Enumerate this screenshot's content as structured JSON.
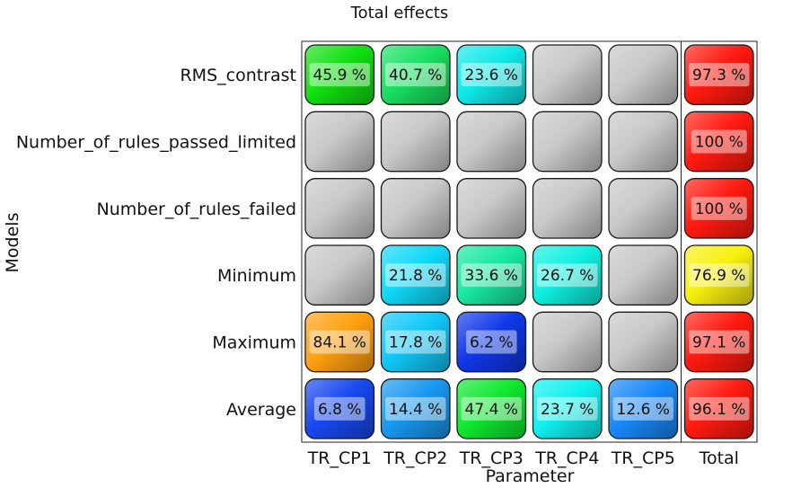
{
  "chart_data": {
    "type": "heatmap",
    "title": "Total effects",
    "xlabel": "Parameter",
    "ylabel": "Models",
    "columns": [
      "TR_CP1",
      "TR_CP2",
      "TR_CP3",
      "TR_CP4",
      "TR_CP5",
      "Total"
    ],
    "rows": [
      "RMS_contrast",
      "Number_of_rules_passed_limited",
      "Number_of_rules_failed",
      "Minimum",
      "Maximum",
      "Average"
    ],
    "values": [
      [
        45.9,
        40.7,
        23.6,
        null,
        null,
        97.3
      ],
      [
        null,
        null,
        null,
        null,
        null,
        100
      ],
      [
        null,
        null,
        null,
        null,
        null,
        100
      ],
      [
        null,
        21.8,
        33.6,
        26.7,
        null,
        76.9
      ],
      [
        84.1,
        17.8,
        6.2,
        null,
        null,
        97.1
      ],
      [
        6.8,
        14.4,
        47.4,
        23.7,
        12.6,
        96.1
      ]
    ],
    "labels": [
      [
        "45.9 %",
        "40.7 %",
        "23.6 %",
        "",
        "",
        "97.3 %"
      ],
      [
        "",
        "",
        "",
        "",
        "",
        "100 %"
      ],
      [
        "",
        "",
        "",
        "",
        "",
        "100 %"
      ],
      [
        "",
        "21.8 %",
        "33.6 %",
        "26.7 %",
        "",
        "76.9 %"
      ],
      [
        "84.1 %",
        "17.8 %",
        "6.2 %",
        "",
        "",
        "97.1 %"
      ],
      [
        "6.8 %",
        "14.4 %",
        "47.4 %",
        "23.7 %",
        "12.6 %",
        "96.1 %"
      ]
    ],
    "colors": [
      [
        "#10e010",
        "#18e060",
        "#10e8e8",
        "#c8c8c8",
        "#c8c8c8",
        "#ff1a10"
      ],
      [
        "#c8c8c8",
        "#c8c8c8",
        "#c8c8c8",
        "#c8c8c8",
        "#c8c8c8",
        "#ff1a10"
      ],
      [
        "#c8c8c8",
        "#c8c8c8",
        "#c8c8c8",
        "#c8c8c8",
        "#c8c8c8",
        "#ff1a10"
      ],
      [
        "#c8c8c8",
        "#10d8f8",
        "#18e8a0",
        "#10f0e0",
        "#c8c8c8",
        "#f8f010"
      ],
      [
        "#ffa010",
        "#10c8f8",
        "#1038e8",
        "#c8c8c8",
        "#c8c8c8",
        "#ff1a10"
      ],
      [
        "#1848f0",
        "#1898f0",
        "#10e830",
        "#10f0f0",
        "#1888f8",
        "#ff1a10"
      ]
    ]
  }
}
